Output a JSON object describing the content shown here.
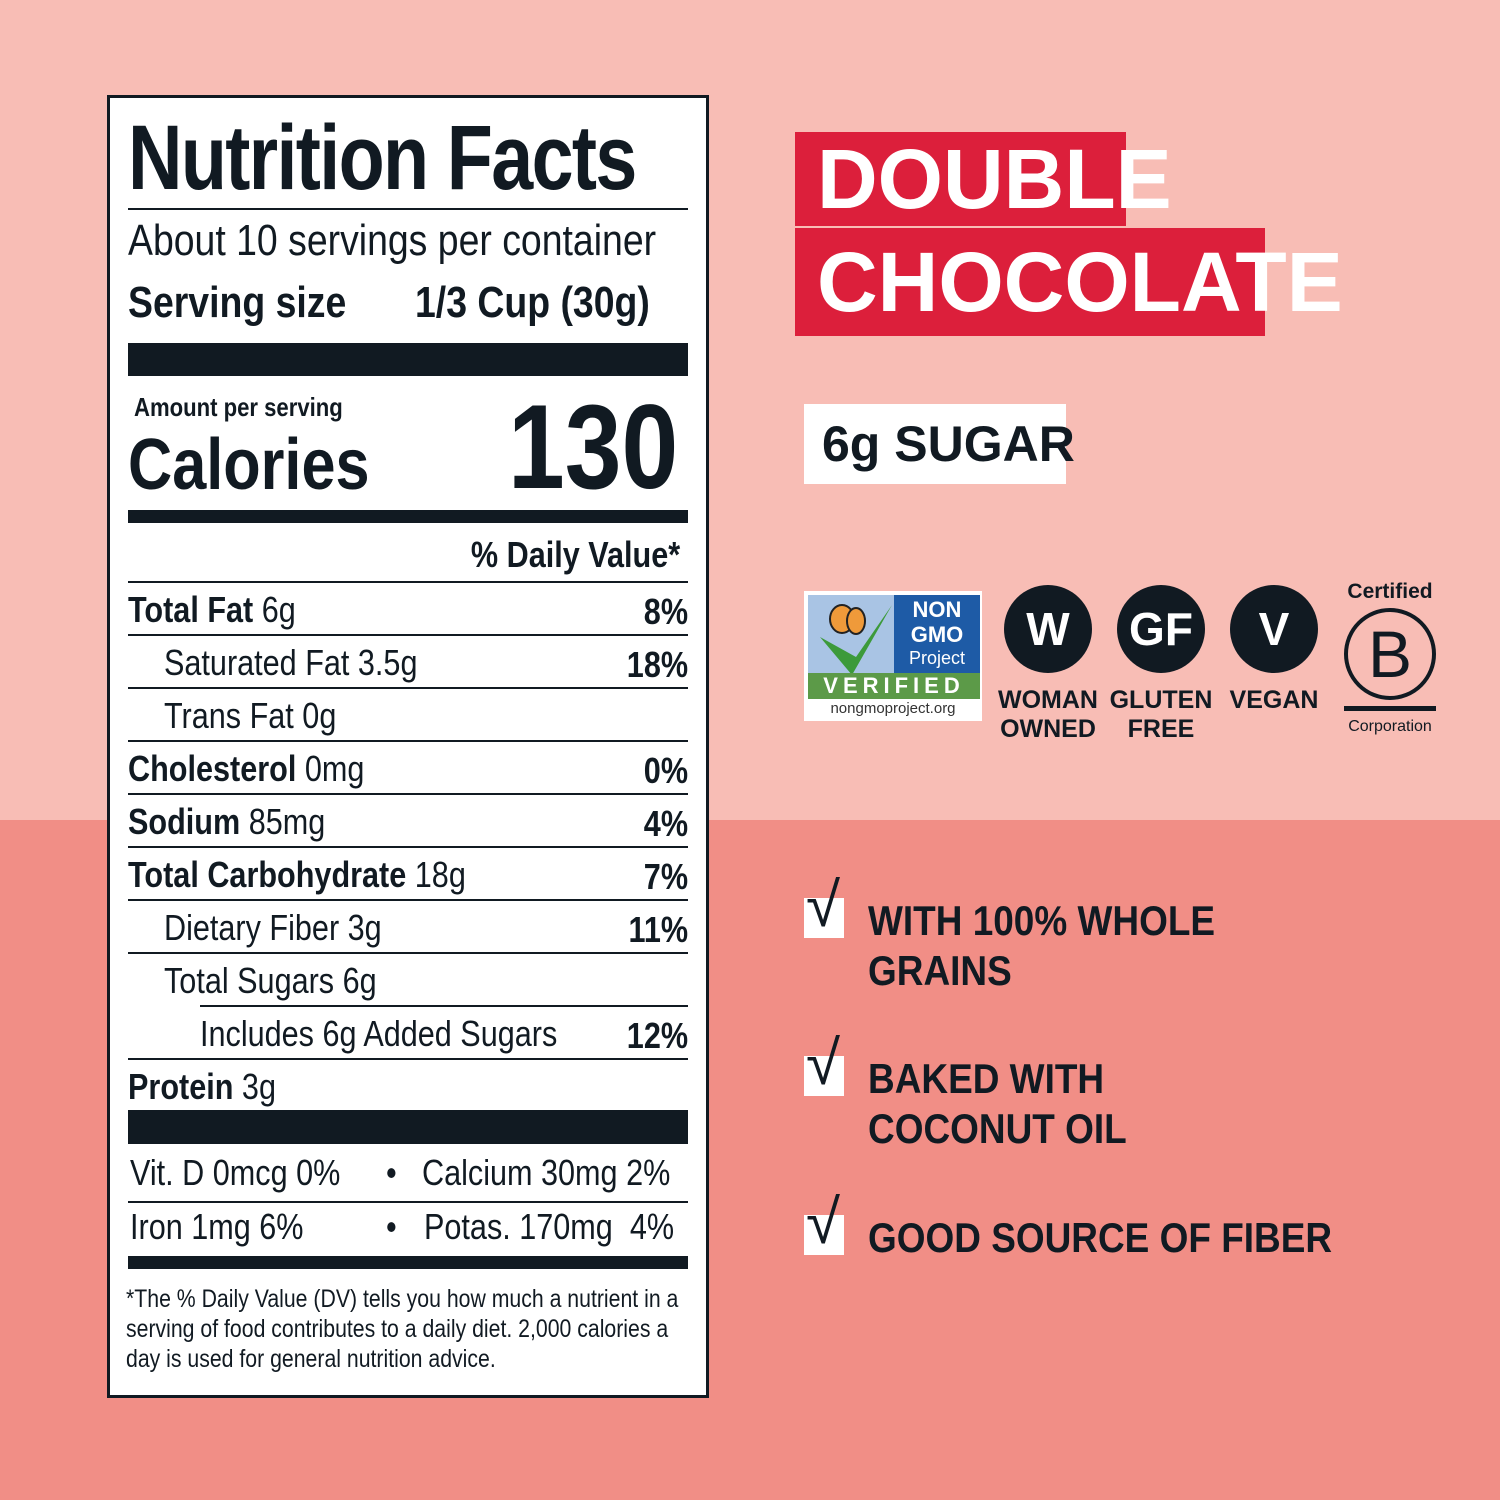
{
  "nutrition": {
    "title": "Nutrition Facts",
    "servings": "About 10 servings per container",
    "serving_size_label": "Serving size",
    "serving_size_value": "1/3 Cup (30g)",
    "amount_per_serving": "Amount per serving",
    "calories_label": "Calories",
    "calories_value": "130",
    "dv_header": "% Daily Value*",
    "rows": [
      {
        "label": "Total Fat",
        "amount": "6g",
        "dv": "8%"
      },
      {
        "label": "Saturated Fat 3.5g",
        "amount": "",
        "dv": "18%"
      },
      {
        "label": "Trans Fat 0g",
        "amount": "",
        "dv": ""
      },
      {
        "label": "Cholesterol",
        "amount": "0mg",
        "dv": "0%"
      },
      {
        "label": "Sodium",
        "amount": "85mg",
        "dv": "4%"
      },
      {
        "label": "Total Carbohydrate",
        "amount": "18g",
        "dv": "7%"
      },
      {
        "label": "Dietary Fiber 3g",
        "amount": "",
        "dv": "11%"
      },
      {
        "label": "Total Sugars 6g",
        "amount": "",
        "dv": ""
      },
      {
        "label": "Includes 6g Added Sugars",
        "amount": "",
        "dv": "12%"
      },
      {
        "label": "Protein",
        "amount": "3g",
        "dv": ""
      }
    ],
    "vitamins": [
      {
        "left": "Vit. D 0mcg 0%",
        "right": "Calcium 30mg 2%"
      },
      {
        "left": "Iron 1mg 6%",
        "right": "Potas. 170mg  4%"
      }
    ],
    "footnote": "*The % Daily Value (DV) tells you how much a nutrient in a serving of food contributes to a daily diet. 2,000 calories a day is used for general nutrition advice."
  },
  "flavor": {
    "line1": "DOUBLE",
    "line2": "CHOCOLATE",
    "color": "#dc1f3b"
  },
  "sugar_tag": "6g SUGAR",
  "certifications": {
    "nongmo": {
      "non": "NON",
      "gmo": "GMO",
      "project": "Project",
      "verified": "VERIFIED",
      "url": "nongmoproject.org"
    },
    "badges": [
      {
        "glyph": "W",
        "label1": "WOMAN",
        "label2": "OWNED"
      },
      {
        "glyph": "GF",
        "label1": "GLUTEN",
        "label2": "FREE"
      },
      {
        "glyph": "V",
        "label1": "VEGAN",
        "label2": ""
      }
    ],
    "bcorp": {
      "top": "Certified",
      "letter": "B",
      "bottom": "Corporation"
    }
  },
  "claims": [
    {
      "line1": "WITH 100% WHOLE",
      "line2": "GRAINS"
    },
    {
      "line1": "BAKED WITH",
      "line2": "COCONUT OIL"
    },
    {
      "line1": "GOOD SOURCE OF FIBER",
      "line2": ""
    }
  ],
  "colors": {
    "top_bg": "#f8bdb5",
    "bottom_bg": "#f18e86",
    "ink": "#111a22"
  }
}
